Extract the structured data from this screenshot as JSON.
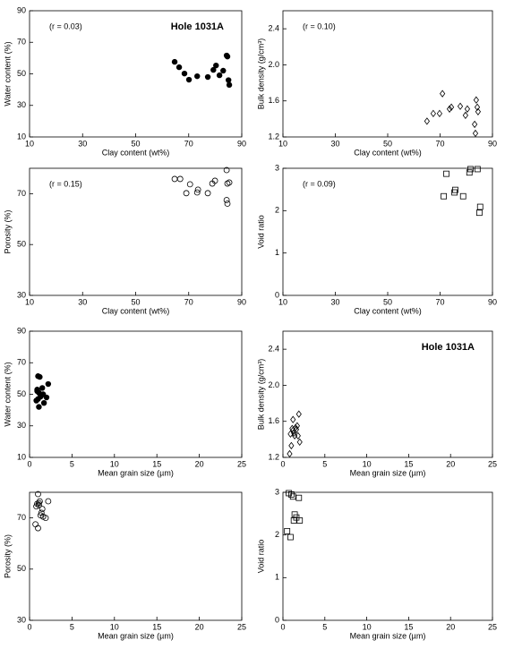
{
  "chart_data": [
    {
      "type": "scatter",
      "marker": "filled-circle",
      "color": "#000",
      "xlabel": "Clay content (wt%)",
      "ylabel": "Water content (%)",
      "annotation": "(r = 0.03)",
      "hole_label": "Hole 1031A",
      "xlim": [
        10,
        90
      ],
      "xticks": [
        10,
        30,
        50,
        70,
        90
      ],
      "ylim": [
        10,
        90
      ],
      "yticks": [
        10,
        30,
        50,
        70,
        90
      ],
      "x": [
        64.7,
        66.4,
        68.4,
        70.1,
        73.2,
        77.2,
        79.3,
        80.3,
        81.6,
        84.3,
        84.6,
        85.0,
        83.0,
        85.3
      ],
      "values": [
        57.6,
        54.2,
        50.2,
        46.3,
        48.5,
        48,
        52.5,
        55.3,
        49.1,
        61.6,
        61,
        46,
        52,
        43
      ]
    },
    {
      "type": "scatter",
      "marker": "open-diamond",
      "color": "#000",
      "xlabel": "Clay content (wt%)",
      "ylabel": "Bulk density (g/cm³)",
      "annotation": "(r = 0.10)",
      "xlim": [
        10,
        90
      ],
      "xticks": [
        10,
        30,
        50,
        70,
        90
      ],
      "ylim": [
        1.2,
        2.6
      ],
      "yticks": [
        1.2,
        1.6,
        {
          "value": 2,
          "label": "2.0"
        },
        2.4
      ],
      "x": [
        65,
        67.4,
        69.8,
        70.9,
        73.6,
        74.3,
        77.7,
        79.7,
        80.4,
        83.2,
        83.5,
        83.8,
        84.2,
        84.5
      ],
      "values": [
        1.375,
        1.46,
        1.46,
        1.68,
        1.51,
        1.53,
        1.54,
        1.44,
        1.51,
        1.34,
        1.24,
        1.61,
        1.53,
        1.48
      ]
    },
    {
      "type": "scatter",
      "marker": "open-circle",
      "color": "#000",
      "xlabel": "Clay content (wt%)",
      "ylabel": "Porosity (%)",
      "annotation": "(r = 0.15)",
      "xlim": [
        10,
        90
      ],
      "xticks": [
        10,
        30,
        50,
        70,
        90
      ],
      "ylim": [
        30,
        80
      ],
      "yticks": [
        30,
        50,
        70
      ],
      "x": [
        64.7,
        66.8,
        69.1,
        70.5,
        73.2,
        73.5,
        77.2,
        78.9,
        79.9,
        84.3,
        84.6,
        85.3,
        84.3,
        84.6
      ],
      "values": [
        75.8,
        75.8,
        70.2,
        73.7,
        70.5,
        71.6,
        70.2,
        74,
        75.1,
        79.3,
        74,
        74.4,
        67.5,
        66.1
      ]
    },
    {
      "type": "scatter",
      "marker": "open-square",
      "color": "#000",
      "xlabel": "Clay content (wt%)",
      "ylabel": "Void ratio",
      "annotation": "(r = 0.09)",
      "xlim": [
        10,
        90
      ],
      "xticks": [
        10,
        30,
        50,
        70,
        90
      ],
      "ylim": [
        0,
        3
      ],
      "yticks": [
        0,
        1,
        2,
        3
      ],
      "x": [
        71.4,
        72.4,
        75.5,
        75.8,
        78.8,
        81.2,
        81.6,
        84.3,
        85.3,
        85
      ],
      "values": [
        2.34,
        2.87,
        2.43,
        2.49,
        2.34,
        2.9,
        2.98,
        2.98,
        2.09,
        1.95
      ]
    },
    {
      "type": "scatter",
      "marker": "filled-circle",
      "color": "#000",
      "xlabel": "Mean grain size (µm)",
      "ylabel": "Water content (%)",
      "xlim": [
        0,
        25
      ],
      "xticks": [
        0,
        5,
        10,
        15,
        20,
        25
      ],
      "ylim": [
        10,
        90
      ],
      "yticks": [
        10,
        30,
        50,
        70,
        90
      ],
      "x": [
        1.0,
        1.2,
        0.9,
        1.1,
        1.6,
        1.3,
        2.0,
        1.0,
        0.8,
        1.7,
        1.1,
        0.9,
        2.2,
        1.5
      ],
      "values": [
        61.5,
        61,
        53,
        51,
        50,
        48.5,
        48,
        47,
        46,
        44.5,
        42,
        52,
        56.5,
        54
      ]
    },
    {
      "type": "scatter",
      "marker": "open-diamond",
      "color": "#000",
      "xlabel": "Mean grain size (µm)",
      "ylabel": "Bulk density (g/cm³)",
      "hole_label": "Hole 1031A",
      "xlim": [
        0,
        25
      ],
      "xticks": [
        0,
        5,
        10,
        15,
        20,
        25
      ],
      "ylim": [
        1.2,
        2.6
      ],
      "yticks": [
        1.2,
        1.6,
        {
          "value": 2,
          "label": "2.0"
        },
        2.4
      ],
      "x": [
        0.8,
        1.0,
        1.2,
        1.1,
        1.3,
        1.5,
        1.6,
        1.9,
        2.0,
        1.4,
        0.9,
        1.2,
        1.7,
        1.8
      ],
      "values": [
        1.24,
        1.33,
        1.62,
        1.52,
        1.47,
        1.53,
        1.51,
        1.68,
        1.37,
        1.44,
        1.46,
        1.5,
        1.55,
        1.44
      ]
    },
    {
      "type": "scatter",
      "marker": "open-circle",
      "color": "#000",
      "xlabel": "Mean grain size (µm)",
      "ylabel": "Porosity (%)",
      "xlim": [
        0,
        25
      ],
      "xticks": [
        0,
        5,
        10,
        15,
        20,
        25
      ],
      "ylim": [
        30,
        80
      ],
      "yticks": [
        30,
        50,
        70
      ],
      "x": [
        1.0,
        1.2,
        0.9,
        1.1,
        0.8,
        2.2,
        1.5,
        1.3,
        1.6,
        1.9,
        0.7,
        1.0,
        1.4,
        1.1
      ],
      "values": [
        79.3,
        76.5,
        75.5,
        75,
        74.5,
        76.5,
        73.5,
        71,
        70.5,
        70,
        67.5,
        66,
        72,
        75.8
      ]
    },
    {
      "type": "scatter",
      "marker": "open-square",
      "color": "#000",
      "xlabel": "Mean grain size (µm)",
      "ylabel": "Void ratio",
      "xlim": [
        0,
        25
      ],
      "xticks": [
        0,
        5,
        10,
        15,
        20,
        25
      ],
      "ylim": [
        0,
        3
      ],
      "yticks": [
        0,
        1,
        2,
        3
      ],
      "x": [
        0.7,
        1.0,
        1.2,
        1.9,
        0.5,
        0.9,
        1.4,
        1.6,
        1.3,
        2.0
      ],
      "values": [
        2.98,
        2.95,
        2.9,
        2.87,
        2.09,
        1.95,
        2.48,
        2.41,
        2.34,
        2.34
      ]
    }
  ]
}
